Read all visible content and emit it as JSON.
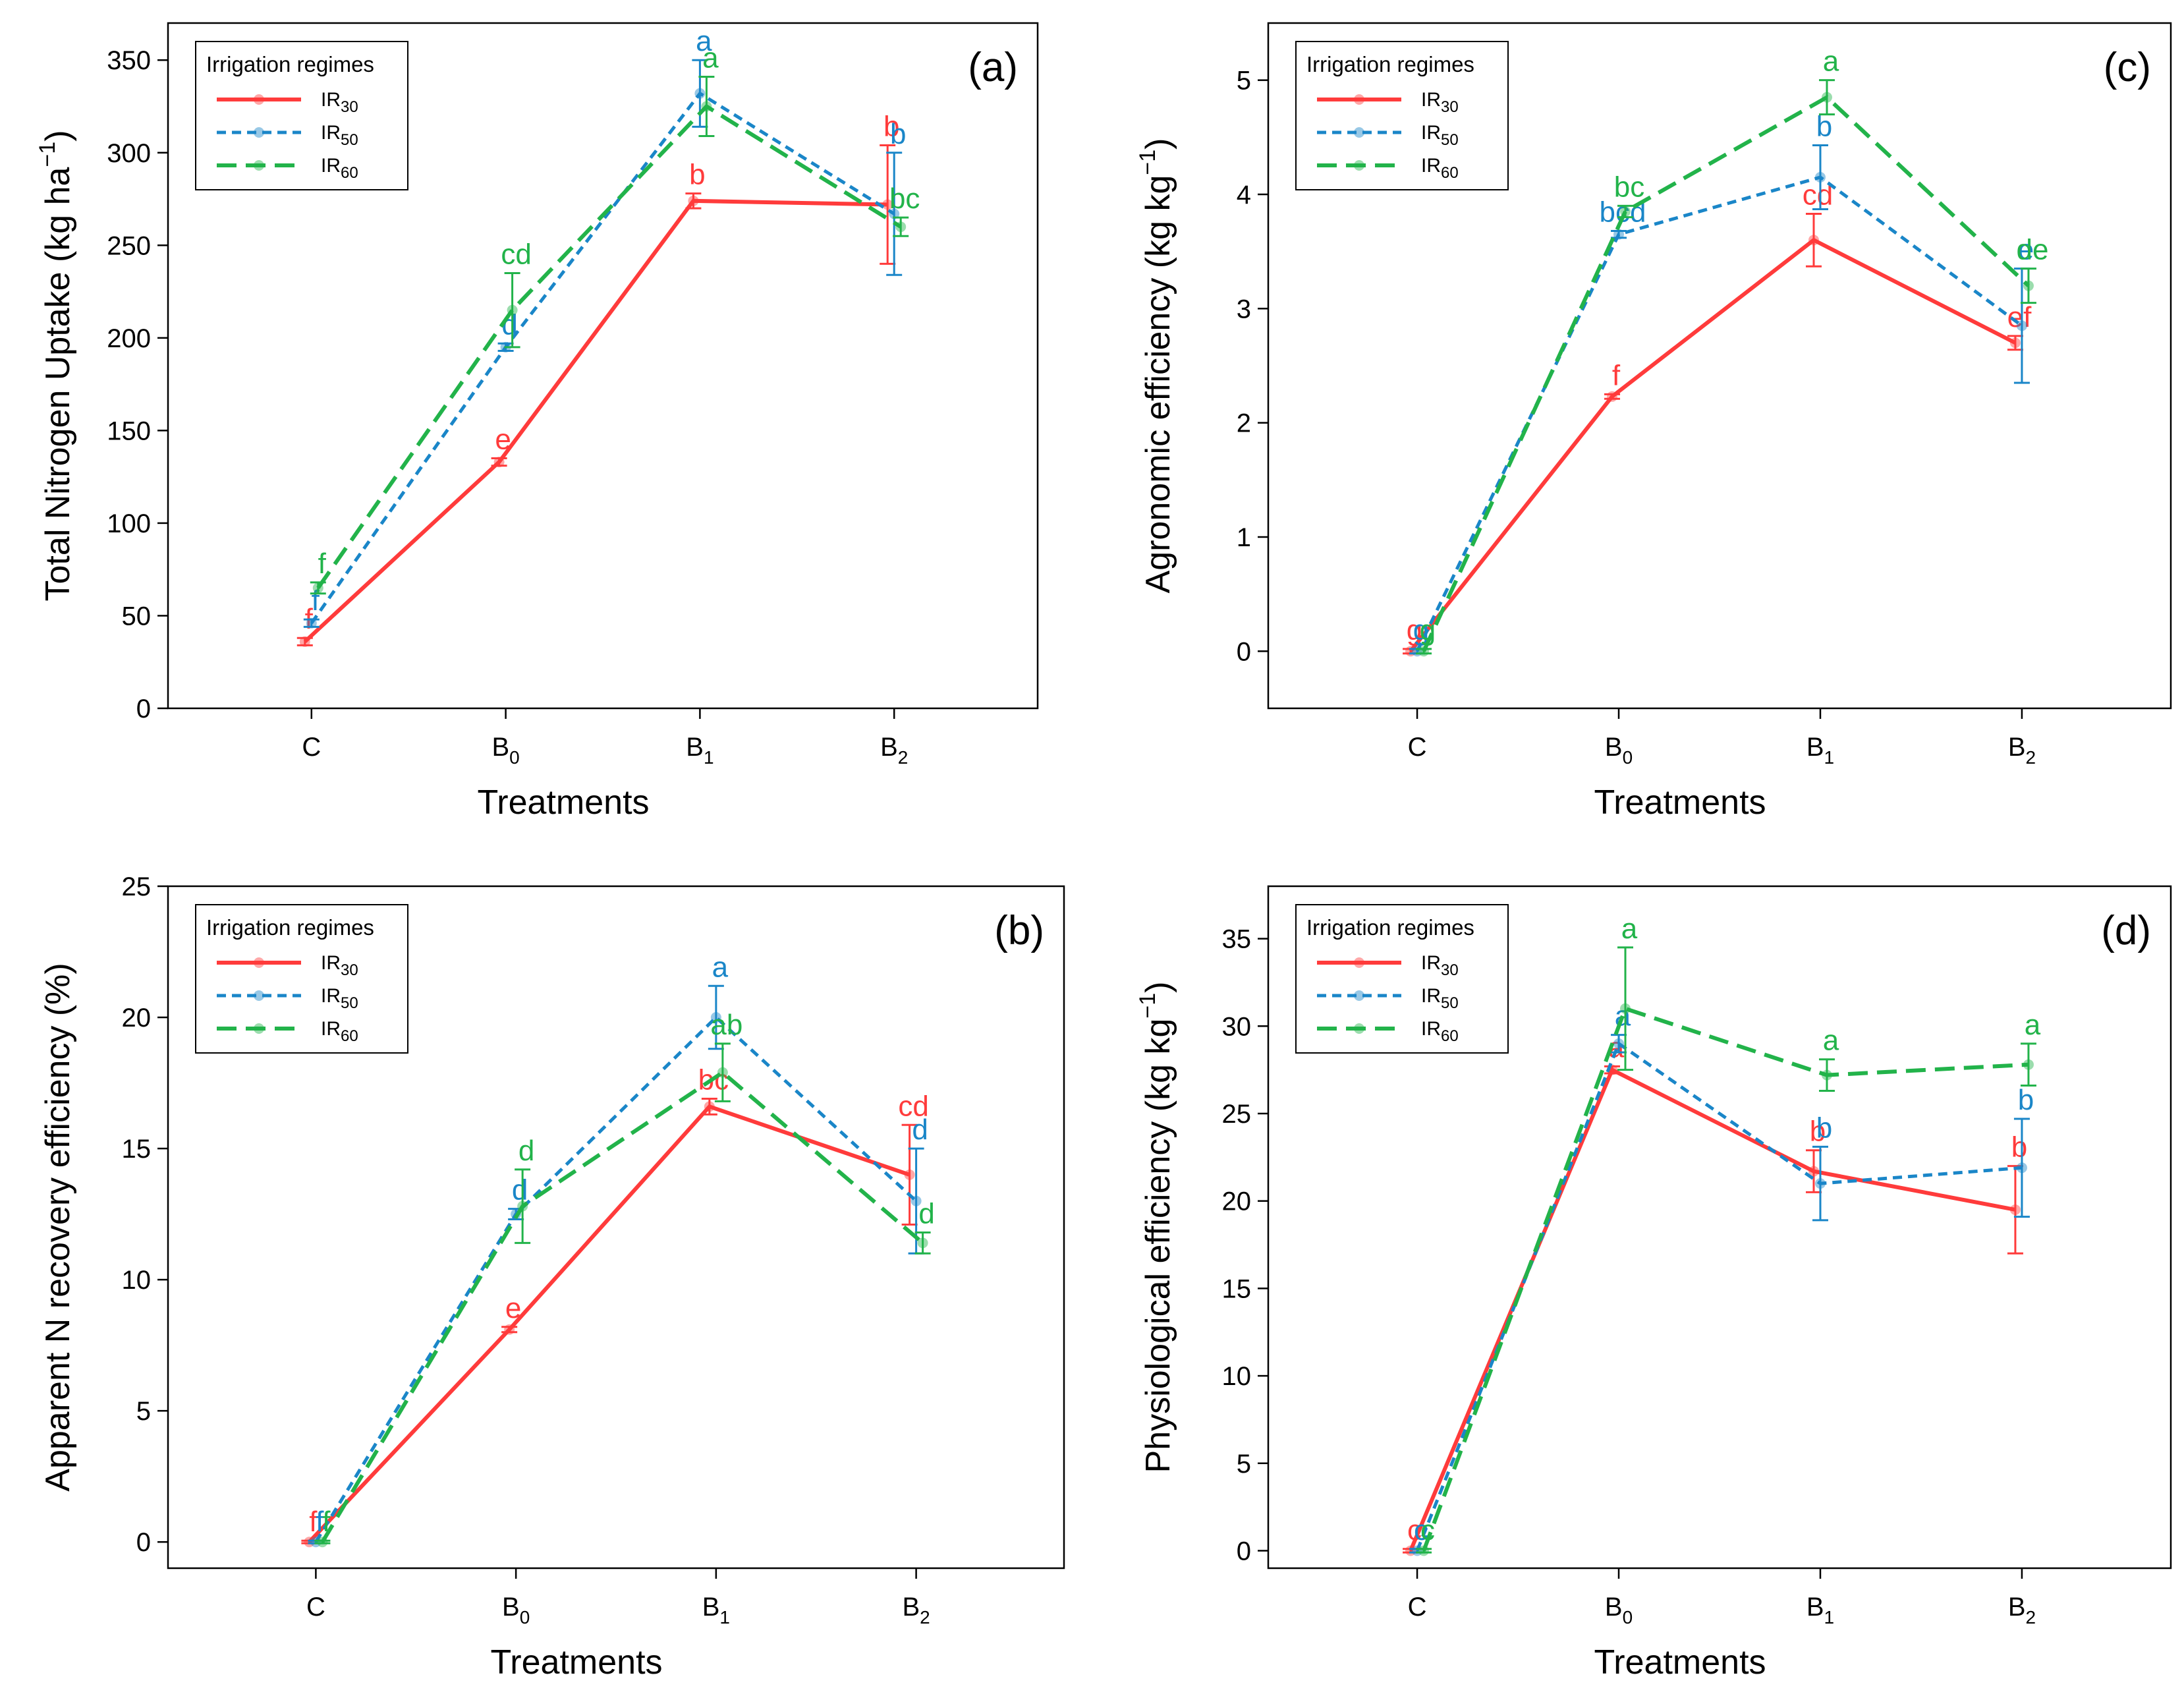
{
  "figure": {
    "legend_title": "Irrigation regimes",
    "legend_entries": [
      {
        "base": "IR",
        "sub": "30"
      },
      {
        "base": "IR",
        "sub": "50"
      },
      {
        "base": "IR",
        "sub": "60"
      }
    ],
    "colors": {
      "IR30": "#ff3b3b",
      "IR50": "#1a86c8",
      "IR60": "#22b34a"
    }
  },
  "chart_data": [
    {
      "id": "a",
      "type": "line",
      "tag": "(a)",
      "title": "",
      "xlabel": "Treatments",
      "ylabel_main": "Total Nitrogen Uptake (kg ha",
      "ylabel_sup": "−1",
      "ylabel_end": ")",
      "categories": [
        {
          "base": "C",
          "sub": ""
        },
        {
          "base": "B",
          "sub": "0"
        },
        {
          "base": "B",
          "sub": "1"
        },
        {
          "base": "B",
          "sub": "2"
        }
      ],
      "ylim": [
        0,
        370
      ],
      "yticks": [
        0,
        50,
        100,
        150,
        200,
        250,
        300,
        350
      ],
      "legend": "top-left",
      "series": [
        {
          "name": "IR30",
          "values": [
            36,
            133,
            274,
            272
          ],
          "errors": [
            2,
            2,
            4,
            32
          ],
          "letters": [
            "f",
            "e",
            "b",
            "b"
          ]
        },
        {
          "name": "IR50",
          "values": [
            46,
            195,
            332,
            267
          ],
          "errors": [
            2,
            2,
            18,
            33
          ],
          "letters": [
            "f",
            "d",
            "a",
            "b"
          ]
        },
        {
          "name": "IR60",
          "values": [
            65,
            215,
            325,
            260
          ],
          "errors": [
            3,
            20,
            16,
            5
          ],
          "letters": [
            "f",
            "cd",
            "a",
            "bc"
          ]
        }
      ]
    },
    {
      "id": "c",
      "type": "line",
      "tag": "(c)",
      "title": "",
      "xlabel": "Treatments",
      "ylabel_main": "Agronomic efficiency (kg kg",
      "ylabel_sup": "−1",
      "ylabel_end": ")",
      "categories": [
        {
          "base": "C",
          "sub": ""
        },
        {
          "base": "B",
          "sub": "0"
        },
        {
          "base": "B",
          "sub": "1"
        },
        {
          "base": "B",
          "sub": "2"
        }
      ],
      "ylim": [
        -0.5,
        5.5
      ],
      "yticks": [
        0,
        1,
        2,
        3,
        4,
        5
      ],
      "legend": "top-left",
      "series": [
        {
          "name": "IR30",
          "values": [
            0,
            2.23,
            3.6,
            2.7
          ],
          "errors": [
            0.02,
            0.02,
            0.23,
            0.06
          ],
          "letters": [
            "g",
            "f",
            "cd",
            "ef"
          ]
        },
        {
          "name": "IR50",
          "values": [
            0,
            3.65,
            4.15,
            2.85
          ],
          "errors": [
            0.02,
            0.03,
            0.28,
            0.5
          ],
          "letters": [
            "g",
            "bcd",
            "b",
            "e"
          ]
        },
        {
          "name": "IR60",
          "values": [
            0,
            3.85,
            4.85,
            3.2
          ],
          "errors": [
            0.02,
            0.05,
            0.15,
            0.15
          ],
          "letters": [
            "g",
            "bc",
            "a",
            "de"
          ]
        }
      ]
    },
    {
      "id": "b",
      "type": "line",
      "tag": "(b)",
      "title": "",
      "xlabel": "Treatments",
      "ylabel_main": "Apparent N recovery efficiency (%)",
      "ylabel_sup": "",
      "ylabel_end": "",
      "categories": [
        {
          "base": "C",
          "sub": ""
        },
        {
          "base": "B",
          "sub": "0"
        },
        {
          "base": "B",
          "sub": "1"
        },
        {
          "base": "B",
          "sub": "2"
        }
      ],
      "ylim": [
        -1,
        25
      ],
      "yticks": [
        0,
        5,
        10,
        15,
        20,
        25
      ],
      "legend": "top-left",
      "series": [
        {
          "name": "IR30",
          "values": [
            0,
            8.1,
            16.6,
            14
          ],
          "errors": [
            0.05,
            0.1,
            0.3,
            1.9
          ],
          "letters": [
            "f",
            "e",
            "bc",
            "cd"
          ]
        },
        {
          "name": "IR50",
          "values": [
            0,
            12.5,
            20,
            13
          ],
          "errors": [
            0.05,
            0.2,
            1.2,
            2
          ],
          "letters": [
            "f",
            "d",
            "a",
            "d"
          ]
        },
        {
          "name": "IR60",
          "values": [
            0,
            12.8,
            17.9,
            11.4
          ],
          "errors": [
            0.05,
            1.4,
            1.1,
            0.4
          ],
          "letters": [
            "f",
            "d",
            "ab",
            "d"
          ]
        }
      ]
    },
    {
      "id": "d",
      "type": "line",
      "tag": "(d)",
      "title": "",
      "xlabel": "Treatments",
      "ylabel_main": "Physiological efficiency (kg kg",
      "ylabel_sup": "−1",
      "ylabel_end": ")",
      "categories": [
        {
          "base": "C",
          "sub": ""
        },
        {
          "base": "B",
          "sub": "0"
        },
        {
          "base": "B",
          "sub": "1"
        },
        {
          "base": "B",
          "sub": "2"
        }
      ],
      "ylim": [
        -1,
        38
      ],
      "yticks": [
        0,
        5,
        10,
        15,
        20,
        25,
        30,
        35
      ],
      "legend": "top-left",
      "series": [
        {
          "name": "IR30",
          "values": [
            0,
            27.5,
            21.7,
            19.5
          ],
          "errors": [
            0.1,
            0.2,
            1.2,
            2.5
          ],
          "letters": [
            "c",
            "a",
            "b",
            "b"
          ]
        },
        {
          "name": "IR50",
          "values": [
            0,
            29,
            21,
            21.9
          ],
          "errors": [
            0.1,
            0.5,
            2.1,
            2.8
          ],
          "letters": [
            "c",
            "a",
            "b",
            "b"
          ]
        },
        {
          "name": "IR60",
          "values": [
            0,
            31,
            27.2,
            27.8
          ],
          "errors": [
            0.1,
            3.5,
            0.9,
            1.2
          ],
          "letters": [
            "c",
            "a",
            "a",
            "a"
          ]
        }
      ]
    }
  ]
}
